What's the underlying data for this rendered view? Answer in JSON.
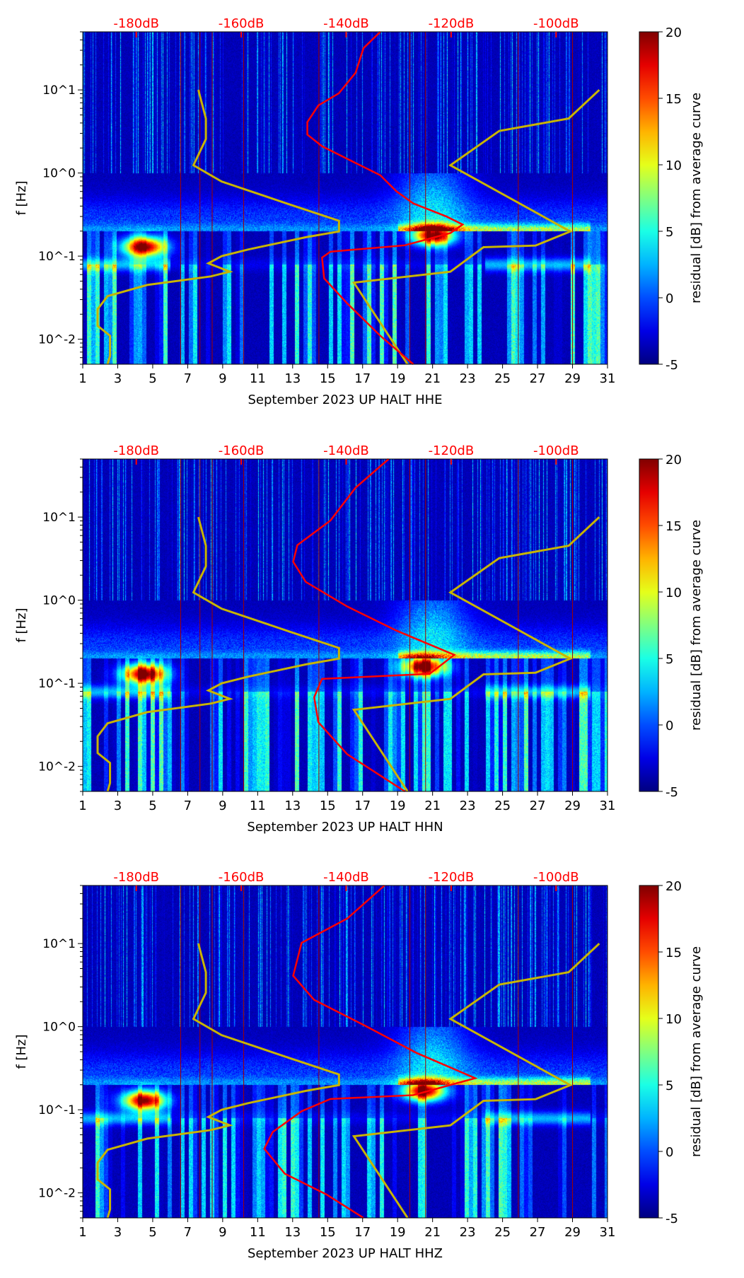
{
  "chart_data": [
    {
      "type": "heatmap",
      "title": "",
      "xlabel": "September 2023 UP HALT  HHE",
      "ylabel": "f [Hz]",
      "xlim": [
        1,
        31
      ],
      "ylim": [
        0.005,
        50
      ],
      "yscale": "log",
      "xticks": [
        1,
        3,
        5,
        7,
        9,
        11,
        13,
        15,
        17,
        19,
        21,
        23,
        25,
        27,
        29,
        31
      ],
      "yticks": [
        {
          "v": 10,
          "label": "10^1"
        },
        {
          "v": 1,
          "label": "10^0"
        },
        {
          "v": 0.1,
          "label": "10^-1"
        },
        {
          "v": 0.01,
          "label": "10^-2"
        }
      ],
      "top_axis": {
        "ticks": [
          "-180dB",
          "-160dB",
          "-140dB",
          "-120dB",
          "-100dB"
        ],
        "values": [
          -180,
          -160,
          -140,
          -120,
          -100
        ],
        "range_db": [
          -190.2,
          -90.2
        ]
      },
      "colorbar": {
        "label": "residual [dB] from average curve",
        "range": [
          -5,
          20
        ],
        "ticks": [
          -5,
          0,
          5,
          10,
          15,
          20
        ],
        "colormap": "jet"
      },
      "red_psd_curve": {
        "db": [
          -133.5,
          -136.7,
          -138.2,
          -141.4,
          -145.3,
          -147.4,
          -147.4,
          -144.6,
          -138.2,
          -133.5,
          -130.4,
          -127.2,
          -120.9,
          -117.8,
          -120.1,
          -128.8,
          -143.0,
          -144.6,
          -144.2,
          -139.8,
          -133.5,
          -127.2
        ],
        "f": [
          50,
          31.8,
          16.1,
          9.1,
          6.5,
          4.1,
          2.9,
          2.1,
          1.32,
          0.94,
          0.6,
          0.43,
          0.3,
          0.24,
          0.19,
          0.135,
          0.113,
          0.096,
          0.054,
          0.027,
          0.011,
          0.005
        ]
      },
      "hotspots": [
        {
          "day": 4.5,
          "f": 0.13,
          "value": 20
        },
        {
          "day": 21,
          "f": 0.18,
          "value": 19
        }
      ]
    },
    {
      "type": "heatmap",
      "title": "",
      "xlabel": "September 2023 UP HALT  HHN",
      "ylabel": "f [Hz]",
      "xlim": [
        1,
        31
      ],
      "ylim": [
        0.005,
        50
      ],
      "yscale": "log",
      "xticks": [
        1,
        3,
        5,
        7,
        9,
        11,
        13,
        15,
        17,
        19,
        21,
        23,
        25,
        27,
        29,
        31
      ],
      "yticks": [
        {
          "v": 10,
          "label": "10^1"
        },
        {
          "v": 1,
          "label": "10^0"
        },
        {
          "v": 0.1,
          "label": "10^-1"
        },
        {
          "v": 0.01,
          "label": "10^-2"
        }
      ],
      "top_axis": {
        "ticks": [
          "-180dB",
          "-160dB",
          "-140dB",
          "-120dB",
          "-100dB"
        ],
        "values": [
          -180,
          -160,
          -140,
          -120,
          -100
        ],
        "range_db": [
          -190.2,
          -90.2
        ]
      },
      "colorbar": {
        "label": "residual [dB] from average curve",
        "range": [
          -5,
          20
        ],
        "ticks": [
          -5,
          0,
          5,
          10,
          15,
          20
        ],
        "colormap": "jet"
      },
      "red_psd_curve": {
        "db": [
          -131.9,
          -138.2,
          -143.0,
          -149.3,
          -150.1,
          -147.7,
          -139.8,
          -130.4,
          -119.4,
          -124.1,
          -144.6,
          -146.1,
          -145.3,
          -139.8,
          -128.8
        ],
        "f": [
          50,
          22.6,
          9.1,
          4.6,
          2.9,
          1.66,
          0.84,
          0.43,
          0.22,
          0.13,
          0.113,
          0.068,
          0.034,
          0.014,
          0.005
        ]
      },
      "hotspots": [
        {
          "day": 4.5,
          "f": 0.13,
          "value": 20
        },
        {
          "day": 20.5,
          "f": 0.16,
          "value": 19
        }
      ]
    },
    {
      "type": "heatmap",
      "title": "",
      "xlabel": "September 2023 UP HALT  HHZ",
      "ylabel": "f [Hz]",
      "xlim": [
        1,
        31
      ],
      "ylim": [
        0.005,
        50
      ],
      "yscale": "log",
      "xticks": [
        1,
        3,
        5,
        7,
        9,
        11,
        13,
        15,
        17,
        19,
        21,
        23,
        25,
        27,
        29,
        31
      ],
      "yticks": [
        {
          "v": 10,
          "label": "10^1"
        },
        {
          "v": 1,
          "label": "10^0"
        },
        {
          "v": 0.1,
          "label": "10^-1"
        },
        {
          "v": 0.01,
          "label": "10^-2"
        }
      ],
      "top_axis": {
        "ticks": [
          "-180dB",
          "-160dB",
          "-140dB",
          "-120dB",
          "-100dB"
        ],
        "values": [
          -180,
          -160,
          -140,
          -120,
          -100
        ],
        "range_db": [
          -190.2,
          -90.2
        ]
      },
      "colorbar": {
        "label": "residual [dB] from average curve",
        "range": [
          -5,
          20
        ],
        "ticks": [
          -5,
          0,
          5,
          10,
          15,
          20
        ],
        "colormap": "jet"
      },
      "red_psd_curve": {
        "db": [
          -132.7,
          -139.8,
          -148.5,
          -150.1,
          -146.1,
          -136.7,
          -126.5,
          -115.4,
          -127.2,
          -143.0,
          -148.5,
          -154.0,
          -155.6,
          -151.7,
          -143.8,
          -136.7
        ],
        "f": [
          50,
          20,
          10.2,
          4.1,
          2.1,
          1.05,
          0.48,
          0.24,
          0.15,
          0.135,
          0.096,
          0.054,
          0.034,
          0.017,
          0.0096,
          0.005
        ]
      },
      "hotspots": [
        {
          "day": 4.5,
          "f": 0.13,
          "value": 20
        },
        {
          "day": 20.5,
          "f": 0.17,
          "value": 19
        }
      ]
    }
  ],
  "yellow_curves": {
    "left": {
      "day": [
        7.61,
        8.04,
        8.04,
        7.33,
        8.94,
        12.81,
        15.65,
        15.65,
        13.76,
        10.45,
        8.94,
        8.18,
        9.41,
        8.32,
        4.69,
        2.42,
        1.85,
        1.85,
        2.56,
        2.56,
        2.42
      ],
      "f": [
        10,
        4.52,
        2.56,
        1.24,
        0.79,
        0.42,
        0.266,
        0.198,
        0.169,
        0.12,
        0.1,
        0.082,
        0.065,
        0.057,
        0.045,
        0.033,
        0.023,
        0.0145,
        0.011,
        0.0063,
        0.005
      ]
    },
    "right": {
      "day": [
        30.53,
        28.78,
        24.81,
        22.02,
        28.87,
        26.89,
        23.91,
        22.02,
        16.5,
        19.57
      ],
      "f": [
        10,
        4.52,
        3.21,
        1.24,
        0.198,
        0.134,
        0.128,
        0.065,
        0.048,
        0.005
      ]
    }
  }
}
